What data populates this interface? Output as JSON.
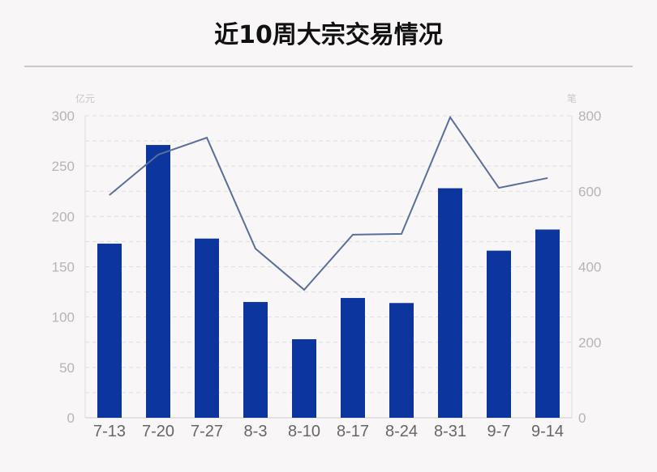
{
  "chart_data": {
    "type": "bar",
    "title": "近10周大宗交易情况",
    "categories": [
      "7-13",
      "7-20",
      "7-27",
      "8-3",
      "8-10",
      "8-17",
      "8-24",
      "8-31",
      "9-7",
      "9-14"
    ],
    "left_axis": {
      "unit": "亿元",
      "ylim": [
        0,
        300
      ],
      "ticks": [
        0,
        50,
        100,
        150,
        200,
        250,
        300
      ]
    },
    "right_axis": {
      "unit": "笔",
      "ylim": [
        0,
        800
      ],
      "ticks": [
        0,
        200,
        400,
        600,
        800
      ]
    },
    "grid": true,
    "series": [
      {
        "type": "bar",
        "axis": "left",
        "color": "#0d359e",
        "values": [
          173,
          271,
          178,
          115,
          78,
          119,
          114,
          228,
          166,
          187
        ]
      },
      {
        "type": "line",
        "axis": "right",
        "color": "#5a6e9c",
        "values": [
          590,
          697,
          742,
          448,
          339,
          485,
          487,
          796,
          609,
          635
        ]
      }
    ]
  }
}
